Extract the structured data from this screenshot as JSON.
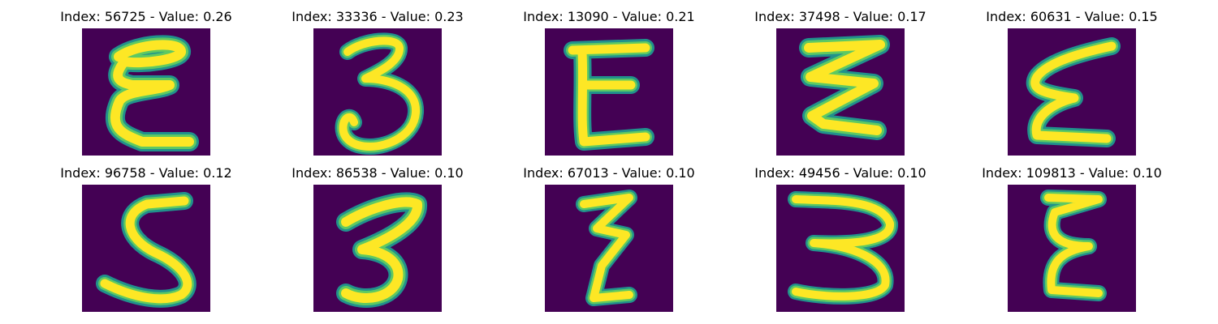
{
  "colors": {
    "background": "#440154",
    "stroke_edge": "#21918c",
    "stroke_mid": "#5ec962",
    "stroke_core": "#fde725"
  },
  "panels": [
    {
      "title": "Index: 56725 - Value: 0.26",
      "glyph": "Ɛ"
    },
    {
      "title": "Index: 33336 - Value: 0.23",
      "glyph": "3"
    },
    {
      "title": "Index: 13090 - Value: 0.21",
      "glyph": "E"
    },
    {
      "title": "Index: 37498 - Value: 0.17",
      "glyph": "Ƹ"
    },
    {
      "title": "Index: 60631 - Value: 0.15",
      "glyph": "Ɛ"
    },
    {
      "title": "Index: 96758 - Value: 0.12",
      "glyph": "S"
    },
    {
      "title": "Index: 86538 - Value: 0.10",
      "glyph": "3"
    },
    {
      "title": "Index: 67013 - Value: 0.10",
      "glyph": "Ƹ"
    },
    {
      "title": "Index: 49456 - Value: 0.10",
      "glyph": "3"
    },
    {
      "title": "Index: 109813 - Value: 0.10",
      "glyph": "Ɛ"
    }
  ]
}
